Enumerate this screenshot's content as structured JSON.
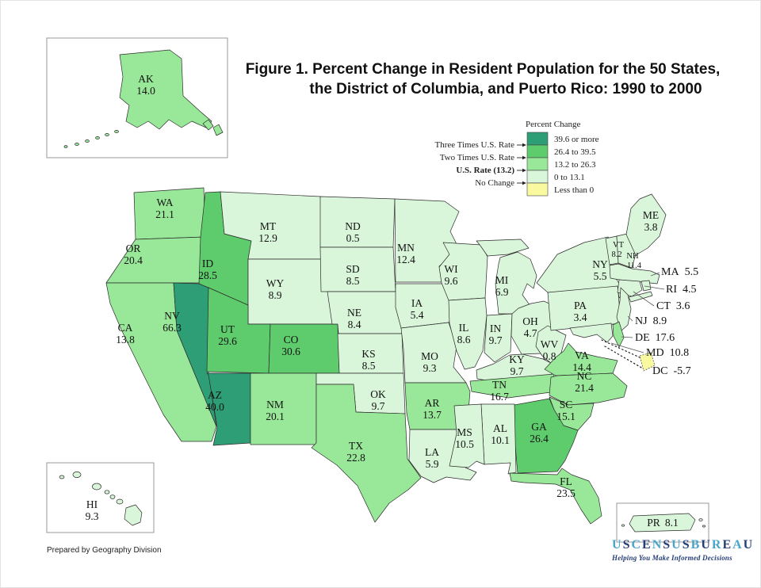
{
  "title": {
    "line1": "Figure 1.  Percent Change in Resident Population for the 50 States,",
    "line2": "the District of Columbia, and Puerto Rico: 1990 to 2000"
  },
  "legend": {
    "title": "Percent Change",
    "categories": [
      {
        "label": "39.6 or more",
        "color": "#2e9e76"
      },
      {
        "label": "26.4 to 39.5",
        "color": "#5ecb6c"
      },
      {
        "label": "13.2 to 26.3",
        "color": "#99e899"
      },
      {
        "label": "0 to 13.1",
        "color": "#daf6da"
      },
      {
        "label": "Less than 0",
        "color": "#f9f9a0"
      }
    ],
    "markers": [
      {
        "label": "Three Times U.S. Rate"
      },
      {
        "label": "Two Times U.S. Rate"
      },
      {
        "label": "U.S. Rate (13.2)"
      },
      {
        "label": "No Change"
      }
    ]
  },
  "states": {
    "AK": {
      "abbr": "AK",
      "value": "14.0",
      "color": "#99e899"
    },
    "HI": {
      "abbr": "HI",
      "value": "9.3",
      "color": "#daf6da"
    },
    "PR": {
      "abbr": "PR",
      "value": "8.1",
      "color": "#daf6da"
    },
    "WA": {
      "abbr": "WA",
      "value": "21.1",
      "color": "#99e899"
    },
    "OR": {
      "abbr": "OR",
      "value": "20.4",
      "color": "#99e899"
    },
    "CA": {
      "abbr": "CA",
      "value": "13.8",
      "color": "#99e899"
    },
    "NV": {
      "abbr": "NV",
      "value": "66.3",
      "color": "#2e9e76"
    },
    "ID": {
      "abbr": "ID",
      "value": "28.5",
      "color": "#5ecb6c"
    },
    "MT": {
      "abbr": "MT",
      "value": "12.9",
      "color": "#daf6da"
    },
    "WY": {
      "abbr": "WY",
      "value": "8.9",
      "color": "#daf6da"
    },
    "UT": {
      "abbr": "UT",
      "value": "29.6",
      "color": "#5ecb6c"
    },
    "CO": {
      "abbr": "CO",
      "value": "30.6",
      "color": "#5ecb6c"
    },
    "AZ": {
      "abbr": "AZ",
      "value": "40.0",
      "color": "#2e9e76"
    },
    "NM": {
      "abbr": "NM",
      "value": "20.1",
      "color": "#99e899"
    },
    "ND": {
      "abbr": "ND",
      "value": "0.5",
      "color": "#daf6da"
    },
    "SD": {
      "abbr": "SD",
      "value": "8.5",
      "color": "#daf6da"
    },
    "NE": {
      "abbr": "NE",
      "value": "8.4",
      "color": "#daf6da"
    },
    "KS": {
      "abbr": "KS",
      "value": "8.5",
      "color": "#daf6da"
    },
    "OK": {
      "abbr": "OK",
      "value": "9.7",
      "color": "#daf6da"
    },
    "TX": {
      "abbr": "TX",
      "value": "22.8",
      "color": "#99e899"
    },
    "MN": {
      "abbr": "MN",
      "value": "12.4",
      "color": "#daf6da"
    },
    "IA": {
      "abbr": "IA",
      "value": "5.4",
      "color": "#daf6da"
    },
    "MO": {
      "abbr": "MO",
      "value": "9.3",
      "color": "#daf6da"
    },
    "AR": {
      "abbr": "AR",
      "value": "13.7",
      "color": "#99e899"
    },
    "LA": {
      "abbr": "LA",
      "value": "5.9",
      "color": "#daf6da"
    },
    "WI": {
      "abbr": "WI",
      "value": "9.6",
      "color": "#daf6da"
    },
    "IL": {
      "abbr": "IL",
      "value": "8.6",
      "color": "#daf6da"
    },
    "IN": {
      "abbr": "IN",
      "value": "9.7",
      "color": "#daf6da"
    },
    "MI": {
      "abbr": "MI",
      "value": "6.9",
      "color": "#daf6da"
    },
    "OH": {
      "abbr": "OH",
      "value": "4.7",
      "color": "#daf6da"
    },
    "KY": {
      "abbr": "KY",
      "value": "9.7",
      "color": "#daf6da"
    },
    "TN": {
      "abbr": "TN",
      "value": "16.7",
      "color": "#99e899"
    },
    "MS": {
      "abbr": "MS",
      "value": "10.5",
      "color": "#daf6da"
    },
    "AL": {
      "abbr": "AL",
      "value": "10.1",
      "color": "#daf6da"
    },
    "GA": {
      "abbr": "GA",
      "value": "26.4",
      "color": "#5ecb6c"
    },
    "FL": {
      "abbr": "FL",
      "value": "23.5",
      "color": "#99e899"
    },
    "SC": {
      "abbr": "SC",
      "value": "15.1",
      "color": "#99e899"
    },
    "NC": {
      "abbr": "NC",
      "value": "21.4",
      "color": "#99e899"
    },
    "VA": {
      "abbr": "VA",
      "value": "14.4",
      "color": "#99e899"
    },
    "WV": {
      "abbr": "WV",
      "value": "0.8",
      "color": "#daf6da"
    },
    "PA": {
      "abbr": "PA",
      "value": "3.4",
      "color": "#daf6da"
    },
    "NY": {
      "abbr": "NY",
      "value": "5.5",
      "color": "#daf6da"
    },
    "ME": {
      "abbr": "ME",
      "value": "3.8",
      "color": "#daf6da"
    },
    "VT": {
      "abbr": "VT",
      "value": "8.2",
      "color": "#daf6da"
    },
    "NH": {
      "abbr": "NH",
      "value": "11.4",
      "color": "#daf6da"
    },
    "MA": {
      "abbr": "MA",
      "value": "5.5",
      "color": "#daf6da"
    },
    "RI": {
      "abbr": "RI",
      "value": "4.5",
      "color": "#daf6da"
    },
    "CT": {
      "abbr": "CT",
      "value": "3.6",
      "color": "#daf6da"
    },
    "NJ": {
      "abbr": "NJ",
      "value": "8.9",
      "color": "#daf6da"
    },
    "DE": {
      "abbr": "DE",
      "value": "17.6",
      "color": "#99e899"
    },
    "MD": {
      "abbr": "MD",
      "value": "10.8",
      "color": "#daf6da"
    },
    "DC": {
      "abbr": "DC",
      "value": "-5.7",
      "color": "#f9f9a0"
    }
  },
  "footer": {
    "credit": "Prepared by Geography Division"
  },
  "logo": {
    "name": "USCENSUSBUREAU",
    "tagline": "Helping You Make Informed Decisions"
  }
}
